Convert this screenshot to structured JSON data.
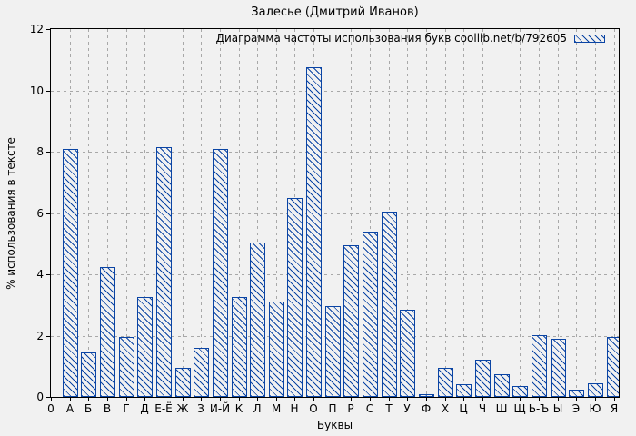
{
  "figure": {
    "title": "Залесье (Дмитрий Иванов)",
    "xlabel": "Буквы",
    "ylabel": "% использования в тексте",
    "origin_label": "0"
  },
  "legend": {
    "label": "Диаграмма частоты использования букв coollib.net/b/792605",
    "position": "top-right-inside",
    "swatch": "hatched-bar-sample"
  },
  "colors": {
    "bar": "#0a44a4",
    "grid": "#a8a8a8",
    "bg": "#f1f1f1",
    "text": "#000000",
    "border": "#000000"
  },
  "chart_data": {
    "type": "bar",
    "title": "Залесье (Дмитрий Иванов)",
    "xlabel": "Буквы",
    "ylabel": "% использования в тексте",
    "legend": [
      "Диаграмма частоты использования букв coollib.net/b/792605"
    ],
    "legend_position": "top-right-inside",
    "grid": true,
    "ylim": [
      0,
      12
    ],
    "yticks": [
      0,
      2,
      4,
      6,
      8,
      10,
      12
    ],
    "origin_tick": "0",
    "bar_style": "blue-diagonal-hatch",
    "categories": [
      "А",
      "Б",
      "В",
      "Г",
      "Д",
      "Е-Ё",
      "Ж",
      "З",
      "И-Й",
      "К",
      "Л",
      "М",
      "Н",
      "О",
      "П",
      "Р",
      "С",
      "Т",
      "У",
      "Ф",
      "Х",
      "Ц",
      "Ч",
      "Ш",
      "Щ",
      "Ь-Ъ",
      "Ы",
      "Э",
      "Ю",
      "Я"
    ],
    "values": [
      8.1,
      1.45,
      4.25,
      1.95,
      3.25,
      8.15,
      0.95,
      1.6,
      8.1,
      3.25,
      5.05,
      3.1,
      6.5,
      10.75,
      2.95,
      4.95,
      5.4,
      6.05,
      2.85,
      0.1,
      0.95,
      0.4,
      1.2,
      0.75,
      0.35,
      2.0,
      1.9,
      0.25,
      0.45,
      1.95
    ]
  }
}
